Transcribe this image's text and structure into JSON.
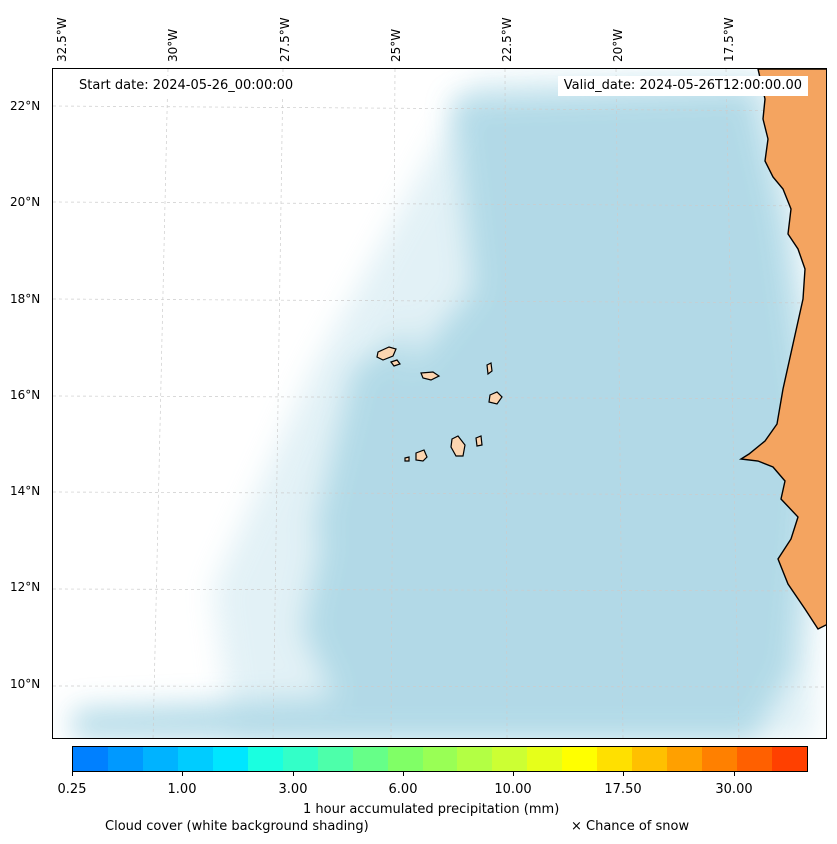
{
  "map": {
    "start_date": "Start date: 2024-05-26_00:00:00",
    "valid_date": "Valid_date: 2024-05-26T12:00:00.00",
    "lon_labels": [
      "32.5°W",
      "30°W",
      "27.5°W",
      "25°W",
      "22.5°W",
      "20°W",
      "17.5°W"
    ],
    "lat_labels": [
      "22°N",
      "20°N",
      "18°N",
      "16°N",
      "14°N",
      "12°N",
      "10°N"
    ],
    "land_color": "#f4a460",
    "island_color": "#fcd5b0",
    "cloud_color": "#add8e6"
  },
  "colorbar": {
    "colors": [
      "#0080ff",
      "#0099ff",
      "#00b3ff",
      "#00ccff",
      "#00e6ff",
      "#1affe0",
      "#33ffc8",
      "#4dffaa",
      "#66ff88",
      "#80ff66",
      "#99ff55",
      "#b3ff44",
      "#ccff33",
      "#e6ff1a",
      "#ffff00",
      "#ffe000",
      "#ffc000",
      "#ffa000",
      "#ff8000",
      "#ff6000",
      "#ff4000"
    ],
    "tick_labels": [
      "0.25",
      "1.00",
      "3.00",
      "6.00",
      "10.00",
      "17.50",
      "30.00"
    ],
    "label": "1 hour accumulated precipitation (mm)"
  },
  "legend": {
    "cloud_cover": "Cloud cover (white background shading)",
    "snow": "× Chance of snow"
  }
}
